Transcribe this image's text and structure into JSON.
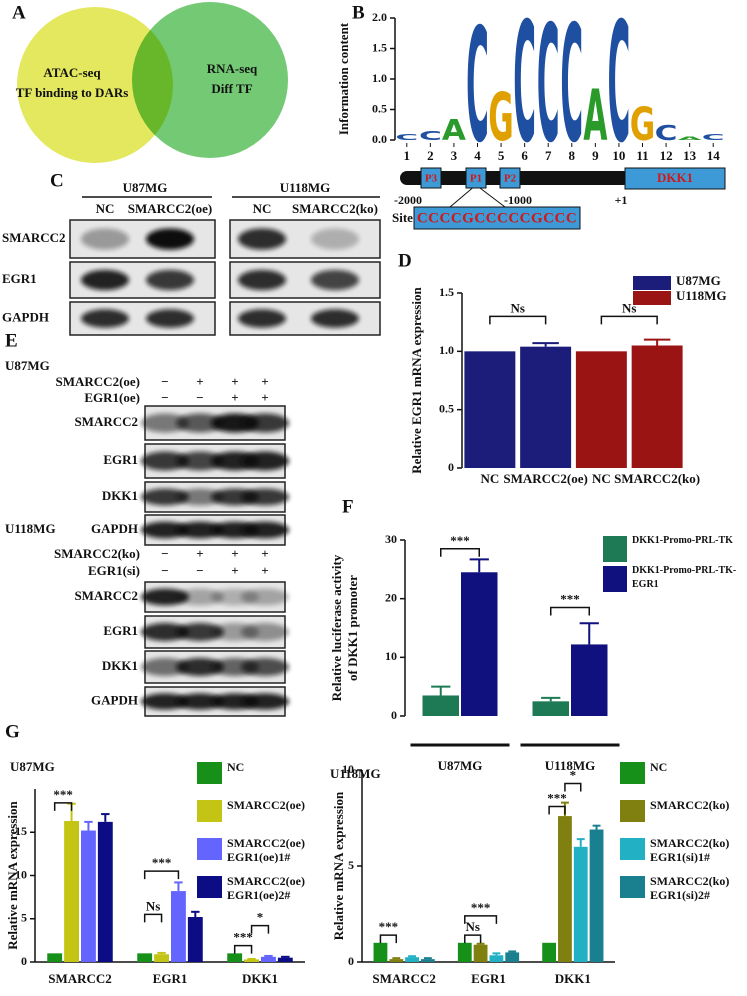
{
  "panel_labels": [
    "A",
    "B",
    "C",
    "D",
    "E",
    "F",
    "G"
  ],
  "venn": {
    "left_lines": [
      "ATAC-seq",
      "TF binding to DARs"
    ],
    "right_lines": [
      "RNA-seq",
      "Diff TF"
    ]
  },
  "promoter": {
    "boxes": [
      "P3",
      "P1",
      "P2"
    ],
    "gene": "DKK1",
    "positions": [
      "-2000",
      "-1000",
      "+1"
    ],
    "site_label": "Site",
    "site_sequence": "CCCCGCCCCCGCCC"
  },
  "blot_c": {
    "cell_lines": [
      "U87MG",
      "U118MG"
    ],
    "lanes": [
      "NC",
      "SMARCC2(oe)",
      "NC",
      "SMARCC2(ko)"
    ],
    "rows": [
      "SMARCC2",
      "EGR1",
      "GAPDH"
    ]
  },
  "blot_e": {
    "groups": [
      {
        "cell_line": "U87MG",
        "conditions": [
          {
            "name": "SMARCC2(oe)",
            "signs": [
              "−",
              "+",
              "+",
              "+"
            ]
          },
          {
            "name": "EGR1(oe)",
            "signs": [
              "−",
              "−",
              "+",
              "+"
            ]
          }
        ],
        "rows": [
          "SMARCC2",
          "EGR1",
          "DKK1",
          "GAPDH"
        ]
      },
      {
        "cell_line": "U118MG",
        "conditions": [
          {
            "name": "SMARCC2(ko)",
            "signs": [
              "−",
              "+",
              "+",
              "+"
            ]
          },
          {
            "name": "EGR1(si)",
            "signs": [
              "−",
              "−",
              "+",
              "+"
            ]
          }
        ],
        "rows": [
          "SMARCC2",
          "EGR1",
          "DKK1",
          "GAPDH"
        ]
      }
    ]
  },
  "chart_data": [
    {
      "type": "logo",
      "ylabel": "Information content",
      "x": [
        1,
        2,
        3,
        4,
        5,
        6,
        7,
        8,
        9,
        10,
        11,
        12,
        13,
        14
      ],
      "letters": [
        "C",
        "C",
        "A",
        "C",
        "G",
        "C",
        "C",
        "C",
        "A",
        "C",
        "G",
        "C",
        "A",
        "C"
      ],
      "values": [
        0.1,
        0.15,
        0.35,
        1.9,
        0.8,
        2.0,
        1.95,
        1.95,
        0.85,
        2.0,
        0.55,
        0.25,
        0.05,
        0.1
      ],
      "xlim": [
        0.5,
        14.5
      ],
      "ylim": [
        0,
        2
      ],
      "yticks": [
        {
          "value": 0,
          "label": "0.0"
        },
        {
          "value": 0.5,
          "label": "0.5"
        },
        {
          "value": 1,
          "label": "1.0"
        },
        {
          "value": 1.5,
          "label": "1.5"
        },
        {
          "value": 2,
          "label": "2.0"
        }
      ]
    },
    {
      "type": "bar",
      "ylabel": "Relative EGR1 mRNA expression",
      "categories": [
        "NC",
        "SMARCC2(oe)",
        "NC",
        "SMARCC2(ko)"
      ],
      "series": [
        {
          "name": "U87MG",
          "color": "#1c1c7a",
          "values": [
            1.0,
            1.04,
            null,
            null
          ],
          "errors": [
            0,
            0.03,
            null,
            null
          ]
        },
        {
          "name": "U118MG",
          "color": "#9b1414",
          "values": [
            null,
            null,
            1.0,
            1.05
          ],
          "errors": [
            null,
            null,
            0,
            0.05
          ]
        }
      ],
      "ylim": [
        0,
        1.5
      ],
      "yticks": [
        0,
        0.5,
        {
          "value": 1,
          "label": "1.0"
        },
        1.5
      ],
      "annotations": [
        "Ns",
        "Ns"
      ]
    },
    {
      "type": "bar",
      "ylabel": [
        "Relative luciferase activity",
        "of DKK1 promoter"
      ],
      "categories": [
        "U87MG",
        "U118MG"
      ],
      "series": [
        {
          "name": "DKK1-Promo-PRL-TK",
          "color": "#1e7a55",
          "values": [
            3.5,
            2.5
          ],
          "errors": [
            1.5,
            0.6
          ]
        },
        {
          "name": "DKK1-Promo-PRL-TK-EGR1",
          "color": "#10107e",
          "values": [
            24.5,
            12.2
          ],
          "errors": [
            2.2,
            3.6
          ]
        }
      ],
      "ylim": [
        0,
        30
      ],
      "yticks": [
        0,
        10,
        20,
        30
      ],
      "annotations": [
        "***",
        "***"
      ]
    },
    {
      "type": "bar",
      "title": "U87MG",
      "ylabel": "Relative mRNA expression",
      "categories": [
        "SMARCC2",
        "EGR1",
        "DKK1"
      ],
      "series": [
        {
          "name": "NC",
          "color": "#17901a",
          "values": [
            1,
            1,
            1
          ],
          "errors": [
            0,
            0,
            0
          ]
        },
        {
          "name": "SMARCC2(oe)",
          "color": "#c4c414",
          "values": [
            16.3,
            0.9,
            0.3
          ],
          "errors": [
            2,
            0.15,
            0.05
          ]
        },
        {
          "name": "SMARCC2(oe) EGR1(oe)1#",
          "color": "#6464ff",
          "values": [
            15.2,
            8.2,
            0.6
          ],
          "errors": [
            1,
            1,
            0.1
          ]
        },
        {
          "name": "SMARCC2(oe) EGR1(oe)2#",
          "color": "#0c0c84",
          "values": [
            16.2,
            5.2,
            0.5
          ],
          "errors": [
            0.9,
            0.6,
            0.1
          ]
        }
      ],
      "ylim": [
        0,
        20
      ],
      "yticks": [
        0,
        5,
        10,
        15
      ],
      "annotations": [
        "***",
        "***",
        "Ns",
        "***",
        "*"
      ]
    },
    {
      "type": "bar",
      "title": "U118MG",
      "ylabel": "Relative mRNA expression",
      "categories": [
        "SMARCC2",
        "EGR1",
        "DKK1"
      ],
      "series": [
        {
          "name": "NC",
          "color": "#17901a",
          "values": [
            1,
            1,
            1
          ],
          "errors": [
            0,
            0,
            0
          ]
        },
        {
          "name": "SMARCC2(ko)",
          "color": "#808010",
          "values": [
            0.15,
            0.9,
            7.6
          ],
          "errors": [
            0.05,
            0.05,
            0.7
          ]
        },
        {
          "name": "SMARCC2(ko) EGR1(si)1#",
          "color": "#22b0c4",
          "values": [
            0.25,
            0.35,
            6.0
          ],
          "errors": [
            0.05,
            0.1,
            0.4
          ]
        },
        {
          "name": "SMARCC2(ko) EGR1(si)2#",
          "color": "#1a8090",
          "values": [
            0.15,
            0.5,
            6.9
          ],
          "errors": [
            0.05,
            0.05,
            0.2
          ]
        }
      ],
      "ylim": [
        0,
        10
      ],
      "yticks": [
        0,
        5,
        10
      ],
      "annotations": [
        "***",
        "***",
        "Ns",
        "***",
        "*"
      ]
    }
  ]
}
